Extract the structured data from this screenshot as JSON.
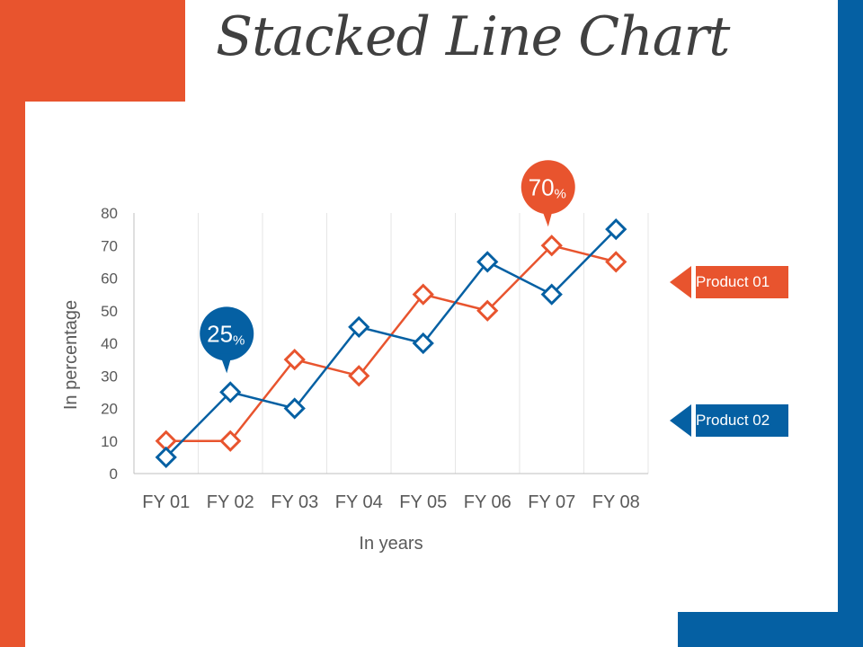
{
  "title": "Stacked Line Chart",
  "colors": {
    "orange": "#E8542E",
    "blue": "#0560A3",
    "grid": "#E6E6E6",
    "axis_text": "#595959",
    "title": "#404040"
  },
  "legend": [
    {
      "label": "Product 01",
      "color": "#E8542E",
      "pointer": "left-arrow"
    },
    {
      "label": "Product 02",
      "color": "#0560A3",
      "pointer": "left-arrow"
    }
  ],
  "callouts": [
    {
      "value": "25",
      "unit": "%",
      "color": "#0560A3",
      "series": "Product 02",
      "category": "FY 02"
    },
    {
      "value": "70",
      "unit": "%",
      "color": "#E8542E",
      "series": "Product 01",
      "category": "FY 07"
    }
  ],
  "chart_data": {
    "type": "line",
    "title": "",
    "xlabel": "In years",
    "ylabel": "In percentage",
    "categories": [
      "FY 01",
      "FY 02",
      "FY 03",
      "FY 04",
      "FY 05",
      "FY 06",
      "FY 07",
      "FY 08"
    ],
    "ylim": [
      0,
      80
    ],
    "yticks": [
      0,
      10,
      20,
      30,
      40,
      50,
      60,
      70,
      80
    ],
    "grid": "vertical",
    "marker": "diamond",
    "legend_position": "right",
    "series": [
      {
        "name": "Product 01",
        "color": "#E8542E",
        "values": [
          10,
          10,
          35,
          30,
          55,
          50,
          70,
          65
        ]
      },
      {
        "name": "Product 02",
        "color": "#0560A3",
        "values": [
          5,
          25,
          20,
          45,
          40,
          65,
          55,
          75
        ]
      }
    ]
  }
}
